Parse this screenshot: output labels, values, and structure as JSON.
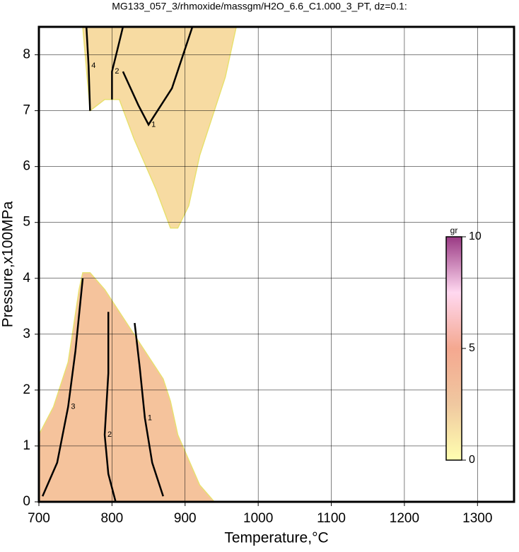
{
  "chart_data": {
    "type": "contour",
    "title": "MG133_057_3/rhmoxide/massgm/H2O_6.6_C1.000_3_PT, dz=0.1:",
    "x_label": "Temperature,°C",
    "y_label": "Pressure,x100MPa",
    "xlim": [
      700,
      1350
    ],
    "ylim": [
      0,
      8.5
    ],
    "xticks": [
      700,
      800,
      900,
      1000,
      1100,
      1200,
      1300
    ],
    "yticks": [
      0,
      1,
      2,
      3,
      4,
      5,
      6,
      7,
      8
    ],
    "grid": true,
    "regions": [
      {
        "color": "#f5c39c",
        "x": [
          700,
          700,
          720,
          740,
          755,
          760,
          770,
          790,
          810,
          840,
          870,
          880,
          890,
          910,
          920,
          940
        ],
        "y": [
          0,
          1.2,
          1.7,
          2.5,
          3.8,
          4.1,
          4.1,
          3.8,
          3.4,
          2.8,
          2.2,
          1.8,
          1.2,
          0.6,
          0.3,
          0
        ]
      },
      {
        "color": "#f7dba2",
        "x": [
          760,
          970,
          955,
          940,
          920,
          905,
          890,
          880,
          860,
          830,
          810,
          790,
          770
        ],
        "y": [
          8.5,
          8.5,
          7.6,
          7.0,
          6.2,
          5.3,
          4.9,
          4.9,
          5.6,
          6.5,
          7.2,
          7.2,
          7.0
        ]
      }
    ],
    "contours": [
      {
        "level": 3,
        "x": [
          705,
          725,
          740,
          750,
          760
        ],
        "y": [
          0.1,
          0.7,
          1.7,
          2.7,
          4.0
        ]
      },
      {
        "level": 2,
        "x": [
          805,
          795,
          790,
          795,
          795
        ],
        "y": [
          0,
          0.5,
          1.2,
          2.3,
          3.4
        ]
      },
      {
        "level": 1,
        "x": [
          870,
          855,
          845,
          838,
          831
        ],
        "y": [
          0.1,
          0.7,
          1.5,
          2.4,
          3.2
        ]
      },
      {
        "level": 1,
        "x": [
          910,
          882,
          850,
          836,
          815
        ],
        "y": [
          8.5,
          7.4,
          6.75,
          7.1,
          7.7
        ]
      },
      {
        "level": 2,
        "x": [
          815,
          807,
          800,
          800
        ],
        "y": [
          8.5,
          8.07,
          7.7,
          7.2
        ]
      },
      {
        "level": 4,
        "x": [
          765,
          768,
          770
        ],
        "y": [
          8.5,
          7.8,
          7.0
        ]
      }
    ],
    "colorbar": {
      "label": "gr",
      "lim": [
        0,
        10
      ],
      "ticks": [
        0,
        5,
        10
      ],
      "colors": [
        "#ffffb0",
        "#f0c8a0",
        "#f4a890",
        "#ffd8f0",
        "#9a3a84"
      ]
    }
  }
}
